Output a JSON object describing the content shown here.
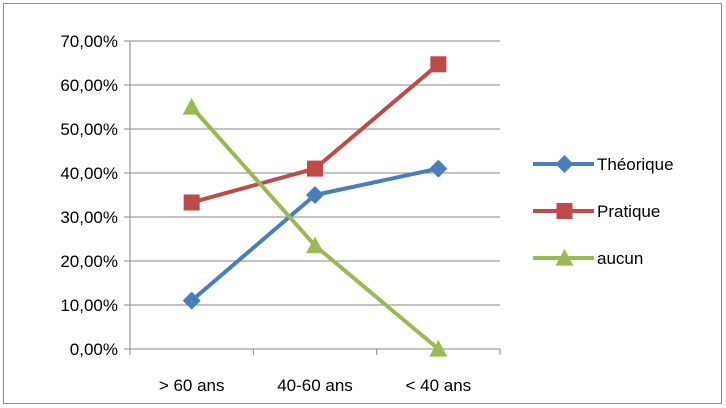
{
  "chart_data": {
    "type": "line",
    "categories": [
      "> 60 ans",
      "40-60 ans",
      "< 40 ans"
    ],
    "y_ticks": [
      "0,00%",
      "10,00%",
      "20,00%",
      "30,00%",
      "40,00%",
      "50,00%",
      "60,00%",
      "70,00%"
    ],
    "ylim": [
      0,
      0.7
    ],
    "grid": true,
    "legend_position": "right",
    "series": [
      {
        "name": "Théorique",
        "values": [
          0.11,
          0.35,
          0.41
        ],
        "color": "#4a7ebb",
        "marker": "diamond"
      },
      {
        "name": "Pratique",
        "values": [
          0.333,
          0.41,
          0.647
        ],
        "color": "#be4b48",
        "marker": "square"
      },
      {
        "name": "aucun",
        "values": [
          0.55,
          0.235,
          0.0
        ],
        "color": "#98b954",
        "marker": "triangle"
      }
    ]
  }
}
